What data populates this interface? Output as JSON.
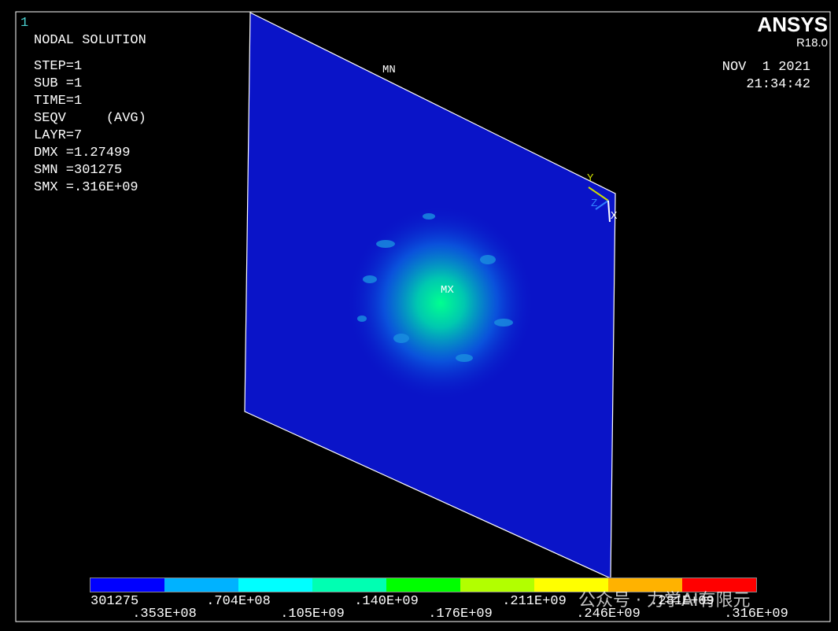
{
  "window_number": "1",
  "header": {
    "title": "NODAL SOLUTION",
    "lines": [
      "STEP=1",
      "SUB =1",
      "TIME=1",
      "SEQV     (AVG)",
      "LAYR=7",
      "DMX =1.27499",
      "SMN =301275",
      "SMX =.316E+09"
    ]
  },
  "logo": {
    "name": "ANSYS",
    "release": "R18.0",
    "date": "NOV  1 2021",
    "time": "21:34:42"
  },
  "labels": {
    "min": "MN",
    "max": "MX"
  },
  "triad": {
    "y": "Y",
    "z": "Z",
    "x": "X"
  },
  "legend": {
    "colors": [
      "#0000ff",
      "#00b2ff",
      "#00ffff",
      "#00ffb2",
      "#00ff00",
      "#b2ff00",
      "#ffff00",
      "#ffb200",
      "#ff0000"
    ],
    "labels": [
      "301275",
      ".353E+08",
      ".704E+08",
      ".105E+09",
      ".140E+09",
      ".176E+09",
      ".211E+09",
      ".246E+09",
      ".281E+09",
      ".316E+09"
    ]
  },
  "watermark": "公众号 · 力学AI有限元"
}
